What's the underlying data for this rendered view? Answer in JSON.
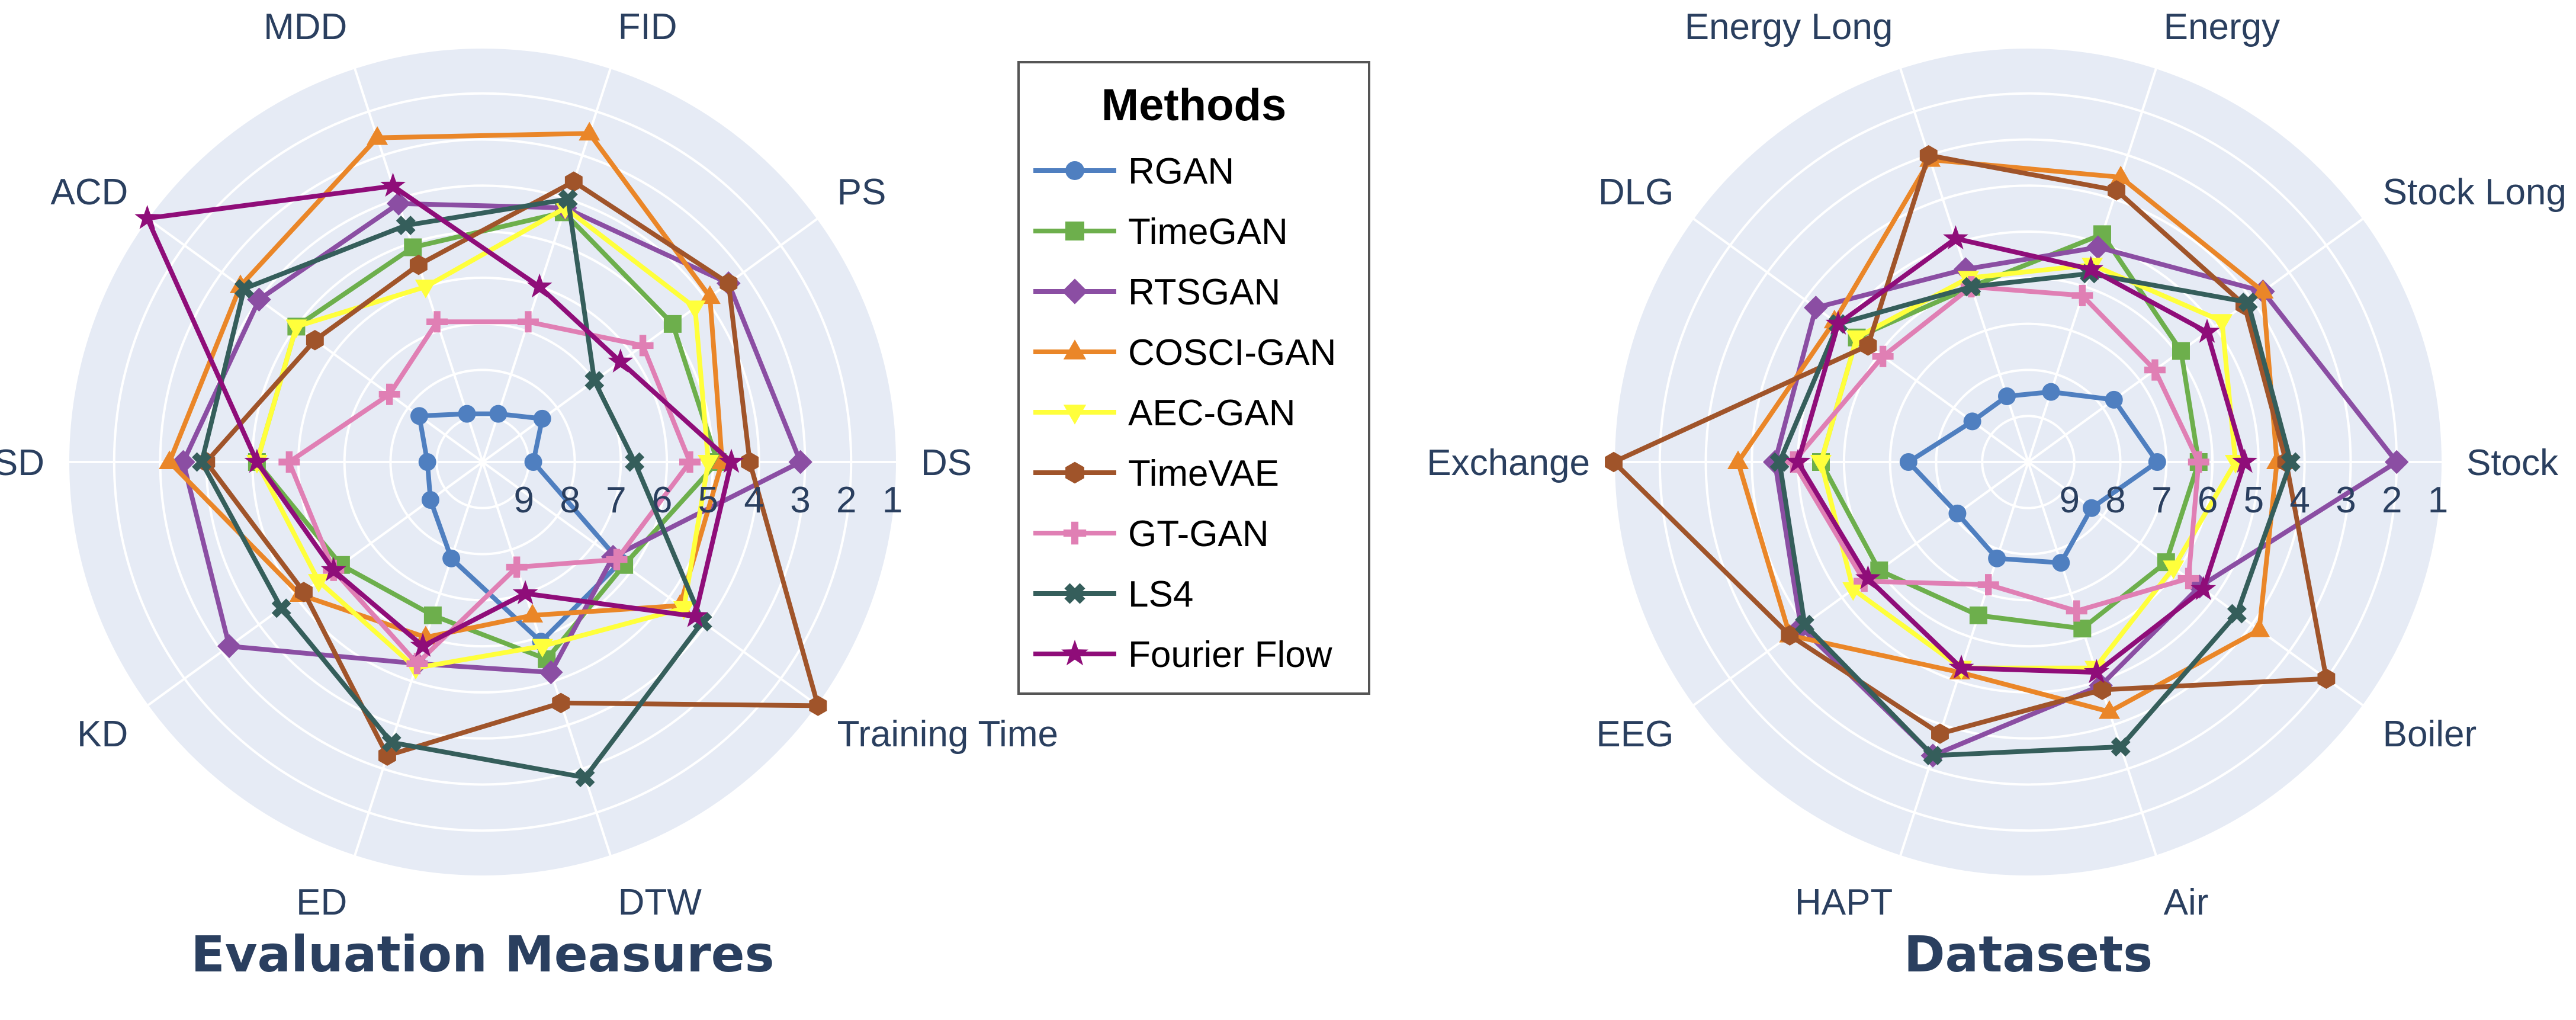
{
  "chart_data": [
    {
      "type": "radar",
      "title": "Evaluation Measures",
      "axes": [
        "DS",
        "PS",
        "FID",
        "MDD",
        "ACD",
        "SD",
        "KD",
        "ED",
        "DTW",
        "Training Time"
      ],
      "radial_ticks": [
        "9",
        "8",
        "7",
        "6",
        "5",
        "4",
        "3",
        "2",
        "1"
      ],
      "radial_scale": "rank, 1 = outer edge, 10 = center",
      "series": [
        {
          "name": "RGAN",
          "values": [
            8.9,
            8.4,
            8.9,
            8.9,
            8.3,
            8.8,
            8.6,
            7.8,
            5.9,
            6.3
          ]
        },
        {
          "name": "TimeGAN",
          "values": [
            4.9,
            4.9,
            4.3,
            5.1,
            5.0,
            5.1,
            6.2,
            6.5,
            5.5,
            6.2
          ]
        },
        {
          "name": "RTSGAN",
          "values": [
            3.1,
            3.4,
            4.2,
            4.1,
            4.0,
            3.5,
            3.2,
            5.4,
            5.2,
            6.5
          ]
        },
        {
          "name": "COSCI-GAN",
          "values": [
            4.8,
            3.9,
            2.5,
            2.6,
            3.5,
            3.2,
            5.1,
            6.0,
            6.5,
            4.7
          ]
        },
        {
          "name": "AEC-GAN",
          "values": [
            5.1,
            4.3,
            4.2,
            6.0,
            5.0,
            5.1,
            5.6,
            5.3,
            5.8,
            4.6
          ]
        },
        {
          "name": "TimeVAE",
          "values": [
            4.2,
            3.4,
            3.6,
            5.5,
            5.5,
            4.0,
            5.2,
            3.3,
            4.5,
            1.0
          ]
        },
        {
          "name": "GT-GAN",
          "values": [
            5.5,
            5.7,
            6.8,
            6.8,
            7.5,
            5.8,
            6.0,
            5.4,
            7.6,
            6.4
          ]
        },
        {
          "name": "LS4",
          "values": [
            6.7,
            7.0,
            4.0,
            4.6,
            3.6,
            3.9,
            4.6,
            3.6,
            2.8,
            4.1
          ]
        },
        {
          "name": "Fourier Flow",
          "values": [
            4.6,
            6.3,
            6.0,
            3.7,
            1.0,
            5.1,
            6.0,
            5.8,
            7.0,
            4.3
          ]
        }
      ]
    },
    {
      "type": "radar",
      "title": "Datasets",
      "axes": [
        "Stock",
        "Stock Long",
        "Energy",
        "Energy Long",
        "DLG",
        "Exchange",
        "EEG",
        "HAPT",
        "Air",
        "Boiler"
      ],
      "radial_ticks": [
        "9",
        "8",
        "7",
        "6",
        "5",
        "4",
        "3",
        "2",
        "1"
      ],
      "radial_scale": "rank, 1 = outer edge, 10 = center",
      "series": [
        {
          "name": "RGAN",
          "values": [
            7.2,
            7.7,
            8.4,
            8.5,
            8.5,
            7.4,
            8.1,
            7.8,
            7.7,
            8.3
          ]
        },
        {
          "name": "TimeGAN",
          "values": [
            6.3,
            5.9,
            4.8,
            6.0,
            5.4,
            5.5,
            6.0,
            6.5,
            6.2,
            6.3
          ]
        },
        {
          "name": "RTSGAN",
          "values": [
            2.0,
            3.7,
            5.1,
            5.6,
            4.3,
            4.5,
            3.9,
            3.3,
            4.9,
            5.4
          ]
        },
        {
          "name": "COSCI-GAN",
          "values": [
            4.6,
            3.7,
            3.5,
            3.1,
            4.8,
            3.7,
            3.6,
            5.2,
            4.3,
            3.8
          ]
        },
        {
          "name": "AEC-GAN",
          "values": [
            5.5,
            4.8,
            5.5,
            5.8,
            5.4,
            5.5,
            5.3,
            5.3,
            5.3,
            6.1
          ]
        },
        {
          "name": "TimeVAE",
          "values": [
            4.4,
            4.2,
            3.8,
            3.0,
            5.7,
            1.0,
            3.6,
            3.8,
            4.8,
            2.0
          ]
        },
        {
          "name": "GT-GAN",
          "values": [
            6.3,
            6.6,
            6.2,
            6.0,
            6.1,
            4.9,
            5.6,
            7.2,
            6.6,
            5.7
          ]
        },
        {
          "name": "LS4",
          "values": [
            4.3,
            4.1,
            5.7,
            6.0,
            4.9,
            4.6,
            4.0,
            3.3,
            3.5,
            4.4
          ]
        },
        {
          "name": "Fourier Flow",
          "values": [
            5.3,
            5.2,
            5.6,
            4.9,
            4.9,
            5.0,
            5.7,
            5.3,
            5.2,
            5.3
          ]
        }
      ]
    }
  ],
  "legend": {
    "title": "Methods",
    "items": [
      {
        "name": "RGAN",
        "color": "#4f7fc0",
        "marker": "circle"
      },
      {
        "name": "TimeGAN",
        "color": "#6daf4c",
        "marker": "square"
      },
      {
        "name": "RTSGAN",
        "color": "#8b4ea3",
        "marker": "diamond"
      },
      {
        "name": "COSCI-GAN",
        "color": "#ea8628",
        "marker": "triangle-up"
      },
      {
        "name": "AEC-GAN",
        "color": "#ffff3b",
        "marker": "triangle-down"
      },
      {
        "name": "TimeVAE",
        "color": "#a0542a",
        "marker": "hexagon"
      },
      {
        "name": "GT-GAN",
        "color": "#e07fb4",
        "marker": "cross"
      },
      {
        "name": "LS4",
        "color": "#355e5b",
        "marker": "x"
      },
      {
        "name": "Fourier Flow",
        "color": "#8f0d79",
        "marker": "star"
      }
    ]
  },
  "style": {
    "background": "#e6ebf5",
    "grid": "#ffffff",
    "text": "#2a3f5f"
  }
}
